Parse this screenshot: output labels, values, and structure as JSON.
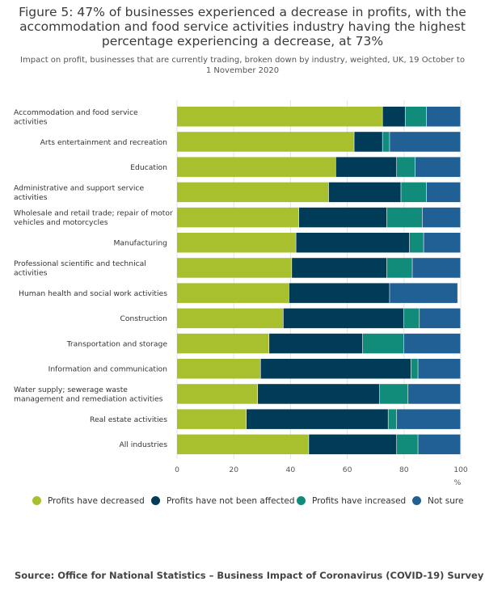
{
  "chart_data": {
    "type": "bar",
    "orientation": "horizontal",
    "stacked": true,
    "title": "Figure 5: 47% of businesses experienced a decrease in profits, with the accommodation and food service activities industry having the highest percentage experiencing a decrease, at 73%",
    "subtitle": "Impact on profit, businesses that are currently trading, broken down by industry, weighted, UK, 19 October to 1 November 2020",
    "xlabel": "%",
    "xlim": [
      0,
      100
    ],
    "xticks": [
      "0",
      "20",
      "40",
      "60",
      "80",
      "100"
    ],
    "categories": [
      [
        "Accommodation and food service",
        "activities"
      ],
      [
        "Arts entertainment and recreation"
      ],
      [
        "Education"
      ],
      [
        "Administrative and support service",
        "activities"
      ],
      [
        "Wholesale and retail trade; repair of motor",
        "vehicles and motorcycles"
      ],
      [
        "Manufacturing"
      ],
      [
        "Professional scientific and technical",
        "activities"
      ],
      [
        "Human health and social work activities"
      ],
      [
        "Construction"
      ],
      [
        "Transportation and storage"
      ],
      [
        "Information and communication"
      ],
      [
        "Water supply; sewerage waste",
        "management and remediation activities"
      ],
      [
        "Real estate activities"
      ],
      [
        "All industries"
      ]
    ],
    "series": [
      {
        "name": "Profits have decreased",
        "color": "#a8bf2e",
        "values": [
          72.5,
          62.5,
          56,
          53.5,
          43,
          42,
          40.5,
          39.5,
          37.5,
          32.5,
          29.5,
          28.5,
          24.5,
          46.5
        ]
      },
      {
        "name": "Profits have not been affected",
        "color": "#003c57",
        "values": [
          8,
          10,
          21.5,
          25.5,
          31,
          40,
          33.5,
          35.5,
          42.5,
          33,
          53,
          43,
          50,
          31
        ]
      },
      {
        "name": "Profits have increased",
        "color": "#118c7b",
        "values": [
          7.5,
          2.5,
          6.5,
          9,
          12.5,
          5,
          9,
          0,
          5.5,
          14.5,
          2.5,
          10,
          3,
          7.5
        ]
      },
      {
        "name": "Not sure",
        "color": "#206095",
        "values": [
          12,
          25,
          16,
          12,
          13.5,
          13,
          17,
          24,
          14.5,
          20,
          15,
          18.5,
          22.5,
          15
        ]
      }
    ]
  },
  "source": "Source: Office for National Statistics – Business Impact of Coronavirus (COVID-19) Survey"
}
